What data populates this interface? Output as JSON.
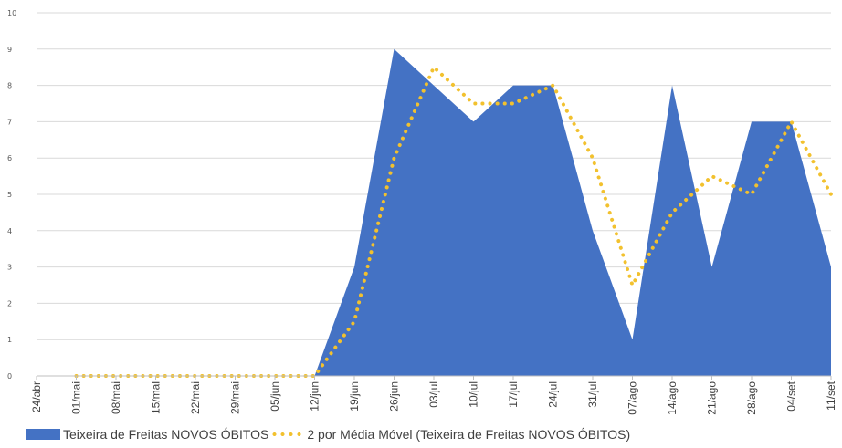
{
  "chart_data": {
    "type": "area",
    "categories": [
      "24/abr",
      "01/mai",
      "08/mai",
      "15/mai",
      "22/mai",
      "29/mai",
      "05/jun",
      "12/jun",
      "19/jun",
      "26/jun",
      "03/jul",
      "10/jul",
      "17/jul",
      "24/jul",
      "31/jul",
      "07/ago",
      "14/ago",
      "21/ago",
      "28/ago",
      "04/set",
      "11/set"
    ],
    "series": [
      {
        "name": "Teixeira de Freitas NOVOS ÓBITOS",
        "kind": "area",
        "color": "#4472c4",
        "values": [
          null,
          0,
          0,
          0,
          0,
          0,
          0,
          0,
          3,
          9,
          8,
          7,
          8,
          8,
          4,
          1,
          8,
          3,
          7,
          7,
          3
        ]
      },
      {
        "name": "2 por Média Móvel (Teixeira de Freitas NOVOS ÓBITOS)",
        "kind": "dotted-line",
        "color": "#f2c12e",
        "values": [
          null,
          0,
          0,
          0,
          0,
          0,
          0,
          0,
          1.5,
          6,
          8.5,
          7.5,
          7.5,
          8,
          6,
          2.5,
          4.5,
          5.5,
          5,
          7,
          5
        ]
      }
    ],
    "yticks": [
      "0",
      "1",
      "2",
      "3",
      "4",
      "5",
      "6",
      "7",
      "8",
      "9",
      "10"
    ],
    "ylim": [
      0,
      10
    ],
    "grid": true,
    "legend": "bottom",
    "title": "",
    "xlabel": "",
    "ylabel": ""
  }
}
